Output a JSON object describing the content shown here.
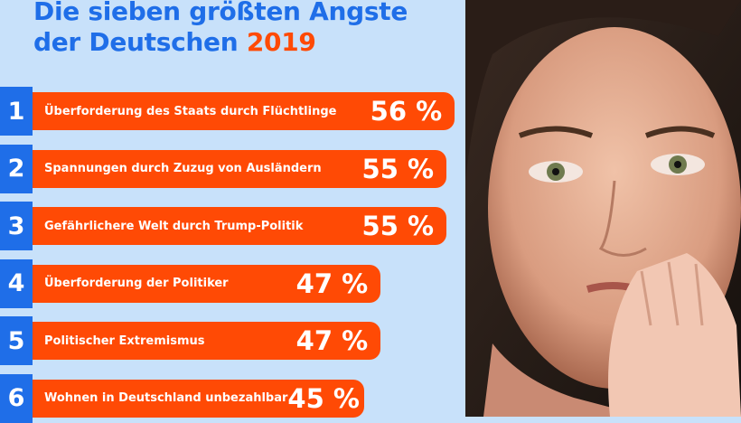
{
  "title": {
    "line1": "Die sieben größten Angste",
    "line2": "der Deutschen",
    "year": "2019"
  },
  "colors": {
    "background": "#c8e1fa",
    "title": "#1f6ee8",
    "accent": "#ff4a05",
    "rank_box": "#1f6ee8"
  },
  "chart_data": {
    "type": "bar",
    "orientation": "horizontal",
    "title": "Die sieben größten Angste der Deutschen 2019",
    "categories": [
      "Überforderung des Staats durch Flüchtlinge",
      "Spannungen durch Zuzug von Ausländern",
      "Gefährlichere Welt durch Trump-Politik",
      "Überforderung der Politiker",
      "Politischer Extremismus",
      "Wohnen in Deutschland unbezahlbar"
    ],
    "ranks": [
      "1",
      "2",
      "3",
      "4",
      "5",
      "6"
    ],
    "values": [
      56,
      55,
      55,
      47,
      47,
      45
    ],
    "value_labels": [
      "56 %",
      "55 %",
      "55 %",
      "47 %",
      "47 %",
      "45 %"
    ],
    "unit": "%"
  },
  "image": {
    "description_icon": "woman-face-photo"
  }
}
